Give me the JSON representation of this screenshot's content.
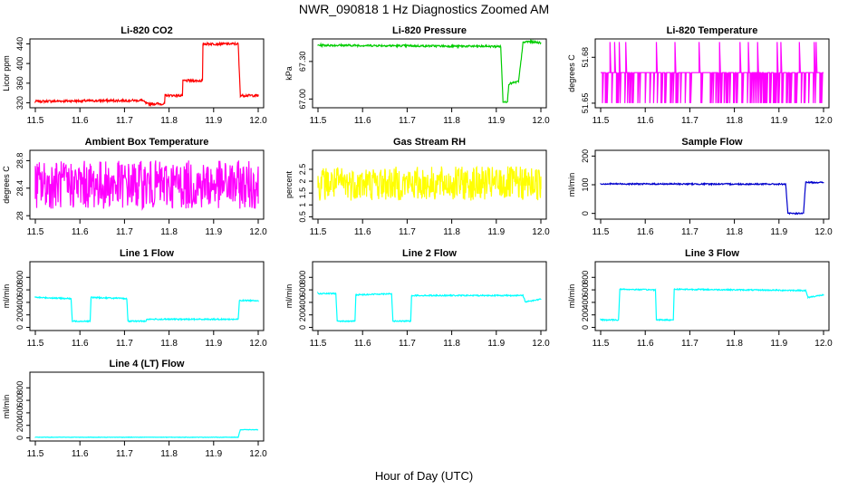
{
  "page": {
    "title": "NWR_090818  1 Hz Diagnostics Zoomed AM",
    "x_caption": "Hour of Day (UTC)"
  },
  "chart_data": [
    {
      "type": "line",
      "title": "Li-820 CO2",
      "ylabel": "Licor ppm",
      "color": "#ff0000",
      "xlim": [
        11.5,
        12.0
      ],
      "ylim": [
        310,
        450
      ],
      "yticks": [
        320,
        360,
        400,
        440
      ],
      "xticks": [
        11.5,
        11.6,
        11.7,
        11.8,
        11.9,
        12.0
      ],
      "series": [
        {
          "points": [
            [
              11.5,
              323
            ],
            [
              11.6,
              324
            ],
            [
              11.74,
              325
            ],
            [
              11.75,
              318
            ],
            [
              11.79,
              318
            ],
            [
              11.79,
              335
            ],
            [
              11.83,
              335
            ],
            [
              11.83,
              365
            ],
            [
              11.875,
              365
            ],
            [
              11.875,
              440
            ],
            [
              11.955,
              440
            ],
            [
              11.96,
              335
            ],
            [
              12.0,
              335
            ]
          ]
        }
      ],
      "noise": 1.5
    },
    {
      "type": "line",
      "title": "Li-820 Pressure",
      "ylabel": "kPa",
      "color": "#00cc00",
      "xlim": [
        11.5,
        12.0
      ],
      "ylim": [
        66.93,
        67.48
      ],
      "yticks": [
        67.0,
        67.3
      ],
      "xticks": [
        11.5,
        11.6,
        11.7,
        11.8,
        11.9,
        12.0
      ],
      "series": [
        {
          "points": [
            [
              11.5,
              67.43
            ],
            [
              11.91,
              67.42
            ],
            [
              11.915,
              66.98
            ],
            [
              11.925,
              66.98
            ],
            [
              11.928,
              67.12
            ],
            [
              11.95,
              67.14
            ],
            [
              11.96,
              67.45
            ],
            [
              11.97,
              67.46
            ],
            [
              12.0,
              67.45
            ]
          ]
        }
      ],
      "noise": 0.005
    },
    {
      "type": "line",
      "title": "Li-820 Temperature",
      "ylabel": "degrees C",
      "color": "#ff00ff",
      "xlim": [
        11.5,
        12.0
      ],
      "ylim": [
        51.647,
        51.692
      ],
      "yticks": [
        51.65,
        51.68
      ],
      "xticks": [
        11.5,
        11.6,
        11.7,
        11.8,
        11.9,
        12.0
      ],
      "series": [
        {
          "levels": [
            51.65,
            51.67,
            51.69
          ]
        }
      ],
      "noise": 0
    },
    {
      "type": "line",
      "title": "Ambient Box Temperature",
      "ylabel": "degrees C",
      "color": "#ff00ff",
      "xlim": [
        11.5,
        12.0
      ],
      "ylim": [
        27.95,
        28.95
      ],
      "yticks": [
        28.0,
        28.4,
        28.8
      ],
      "xticks": [
        11.5,
        11.6,
        11.7,
        11.8,
        11.9,
        12.0
      ],
      "series": [
        {
          "points": [
            [
              11.5,
              28.45
            ],
            [
              12.0,
              28.45
            ]
          ]
        }
      ],
      "noise": 0.22
    },
    {
      "type": "line",
      "title": "Gas Stream RH",
      "ylabel": "percent",
      "color": "#ffff00",
      "xlim": [
        11.5,
        12.0
      ],
      "ylim": [
        0.4,
        3.3
      ],
      "yticks": [
        0.5,
        1.0,
        1.5,
        2.0,
        2.5
      ],
      "xticks": [
        11.5,
        11.6,
        11.7,
        11.8,
        11.9,
        12.0
      ],
      "series": [
        {
          "points": [
            [
              11.5,
              1.9
            ],
            [
              12.0,
              1.9
            ]
          ]
        }
      ],
      "noise": 0.45
    },
    {
      "type": "line",
      "title": "Sample Flow",
      "ylabel": "ml/min",
      "color": "#0000cc",
      "xlim": [
        11.5,
        12.0
      ],
      "ylim": [
        -20,
        220
      ],
      "yticks": [
        0,
        100,
        200
      ],
      "xticks": [
        11.5,
        11.6,
        11.7,
        11.8,
        11.9,
        12.0
      ],
      "series": [
        {
          "points": [
            [
              11.5,
              103
            ],
            [
              11.915,
              102
            ],
            [
              11.92,
              0
            ],
            [
              11.955,
              0
            ],
            [
              11.96,
              108
            ],
            [
              12.0,
              108
            ]
          ]
        }
      ],
      "noise": 1.5
    },
    {
      "type": "line",
      "title": "Line 1 Flow",
      "ylabel": "ml/min",
      "color": "#00ffff",
      "xlim": [
        11.5,
        12.0
      ],
      "ylim": [
        -50,
        1050
      ],
      "yticks": [
        0,
        200,
        400,
        600,
        800
      ],
      "xticks": [
        11.5,
        11.6,
        11.7,
        11.8,
        11.9,
        12.0
      ],
      "series": [
        {
          "points": [
            [
              11.5,
              480
            ],
            [
              11.58,
              460
            ],
            [
              11.583,
              100
            ],
            [
              11.623,
              100
            ],
            [
              11.625,
              480
            ],
            [
              11.705,
              460
            ],
            [
              11.708,
              100
            ],
            [
              11.748,
              100
            ],
            [
              11.75,
              130
            ],
            [
              11.955,
              130
            ],
            [
              11.958,
              430
            ],
            [
              12.0,
              430
            ]
          ]
        }
      ],
      "noise": 6
    },
    {
      "type": "line",
      "title": "Line 2 Flow",
      "ylabel": "ml/min",
      "color": "#00ffff",
      "xlim": [
        11.5,
        12.0
      ],
      "ylim": [
        -50,
        1050
      ],
      "yticks": [
        0,
        200,
        400,
        600,
        800
      ],
      "xticks": [
        11.5,
        11.6,
        11.7,
        11.8,
        11.9,
        12.0
      ],
      "series": [
        {
          "points": [
            [
              11.5,
              540
            ],
            [
              11.54,
              540
            ],
            [
              11.543,
              100
            ],
            [
              11.583,
              100
            ],
            [
              11.585,
              520
            ],
            [
              11.665,
              540
            ],
            [
              11.668,
              100
            ],
            [
              11.708,
              100
            ],
            [
              11.71,
              510
            ],
            [
              11.96,
              510
            ],
            [
              11.965,
              410
            ],
            [
              12.0,
              450
            ]
          ]
        }
      ],
      "noise": 6
    },
    {
      "type": "line",
      "title": "Line 3 Flow",
      "ylabel": "ml/min",
      "color": "#00ffff",
      "xlim": [
        11.5,
        12.0
      ],
      "ylim": [
        -50,
        1050
      ],
      "yticks": [
        0,
        200,
        400,
        600,
        800
      ],
      "xticks": [
        11.5,
        11.6,
        11.7,
        11.8,
        11.9,
        12.0
      ],
      "series": [
        {
          "points": [
            [
              11.5,
              120
            ],
            [
              11.54,
              120
            ],
            [
              11.543,
              610
            ],
            [
              11.623,
              600
            ],
            [
              11.625,
              120
            ],
            [
              11.663,
              120
            ],
            [
              11.665,
              610
            ],
            [
              11.96,
              590
            ],
            [
              11.965,
              480
            ],
            [
              12.0,
              520
            ]
          ]
        }
      ],
      "noise": 6
    },
    {
      "type": "line",
      "title": "Line 4 (LT) Flow",
      "ylabel": "ml/min",
      "color": "#00ffff",
      "xlim": [
        11.5,
        12.0
      ],
      "ylim": [
        -50,
        1050
      ],
      "yticks": [
        0,
        200,
        400,
        600,
        800
      ],
      "xticks": [
        11.5,
        11.6,
        11.7,
        11.8,
        11.9,
        12.0
      ],
      "series": [
        {
          "points": [
            [
              11.5,
              10
            ],
            [
              11.955,
              10
            ],
            [
              11.96,
              130
            ],
            [
              12.0,
              130
            ]
          ]
        }
      ],
      "noise": 2
    }
  ]
}
